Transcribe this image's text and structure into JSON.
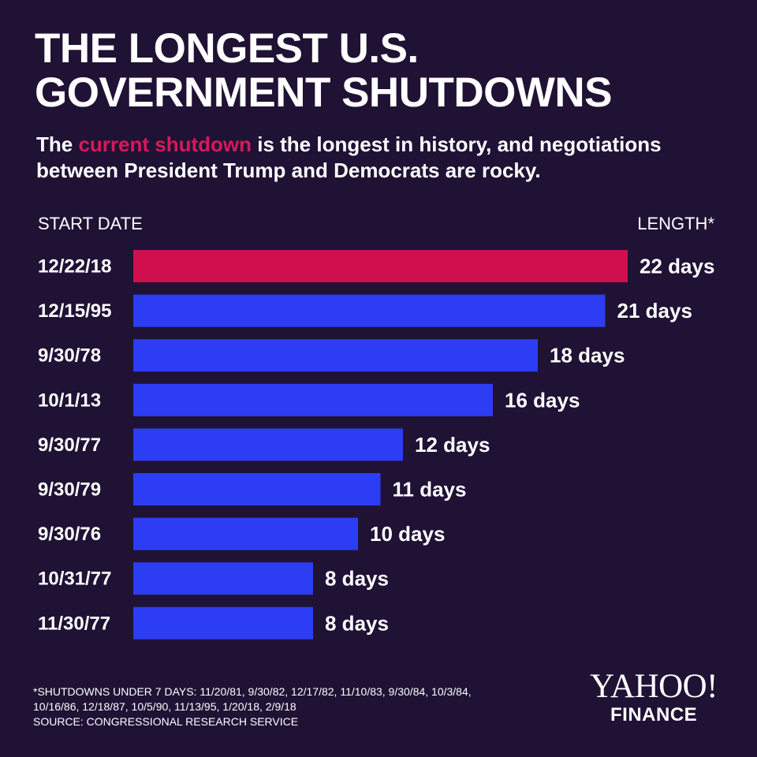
{
  "header": {
    "title_line1": "THE LONGEST U.S.",
    "title_line2": "GOVERNMENT SHUTDOWNS",
    "subtitle_prefix": "The ",
    "subtitle_highlight": "current shutdown",
    "subtitle_rest": " is the longest in history, and negotiations",
    "subtitle_line2": "between President Trump and Democrats are rocky."
  },
  "columns": {
    "start": "START DATE",
    "length": "LENGTH*"
  },
  "chart_data": {
    "type": "bar",
    "orientation": "horizontal",
    "title": "THE LONGEST U.S. GOVERNMENT SHUTDOWNS",
    "xlabel": "LENGTH*",
    "ylabel": "START DATE",
    "unit": "days",
    "categories": [
      "12/22/18",
      "12/15/95",
      "9/30/78",
      "10/1/13",
      "9/30/77",
      "9/30/79",
      "9/30/76",
      "10/31/77",
      "11/30/77"
    ],
    "values": [
      22,
      21,
      18,
      16,
      12,
      11,
      10,
      8,
      8
    ],
    "value_labels": [
      "22 days",
      "21 days",
      "18 days",
      "16 days",
      "12 days",
      "11 days",
      "10 days",
      "8 days",
      "8 days"
    ],
    "highlight_index": 0,
    "colors": {
      "highlight": "#d0104e",
      "bar": "#2d3df3",
      "background": "#1f1235",
      "text": "#ffffff",
      "accent_text": "#d8185a"
    },
    "grid": false,
    "legend": "none"
  },
  "footer": {
    "note_line1": "*SHUTDOWNS UNDER 7 DAYS: 11/20/81, 9/30/82, 12/17/82, 11/10/83, 9/30/84, 10/3/84,",
    "note_line2": "10/16/86, 12/18/87, 10/5/90, 11/13/95, 1/20/18, 2/9/18",
    "source": "SOURCE:  CONGRESSIONAL RESEARCH SERVICE"
  },
  "logo": {
    "main": "YAHOO!",
    "sub": "FINANCE"
  }
}
